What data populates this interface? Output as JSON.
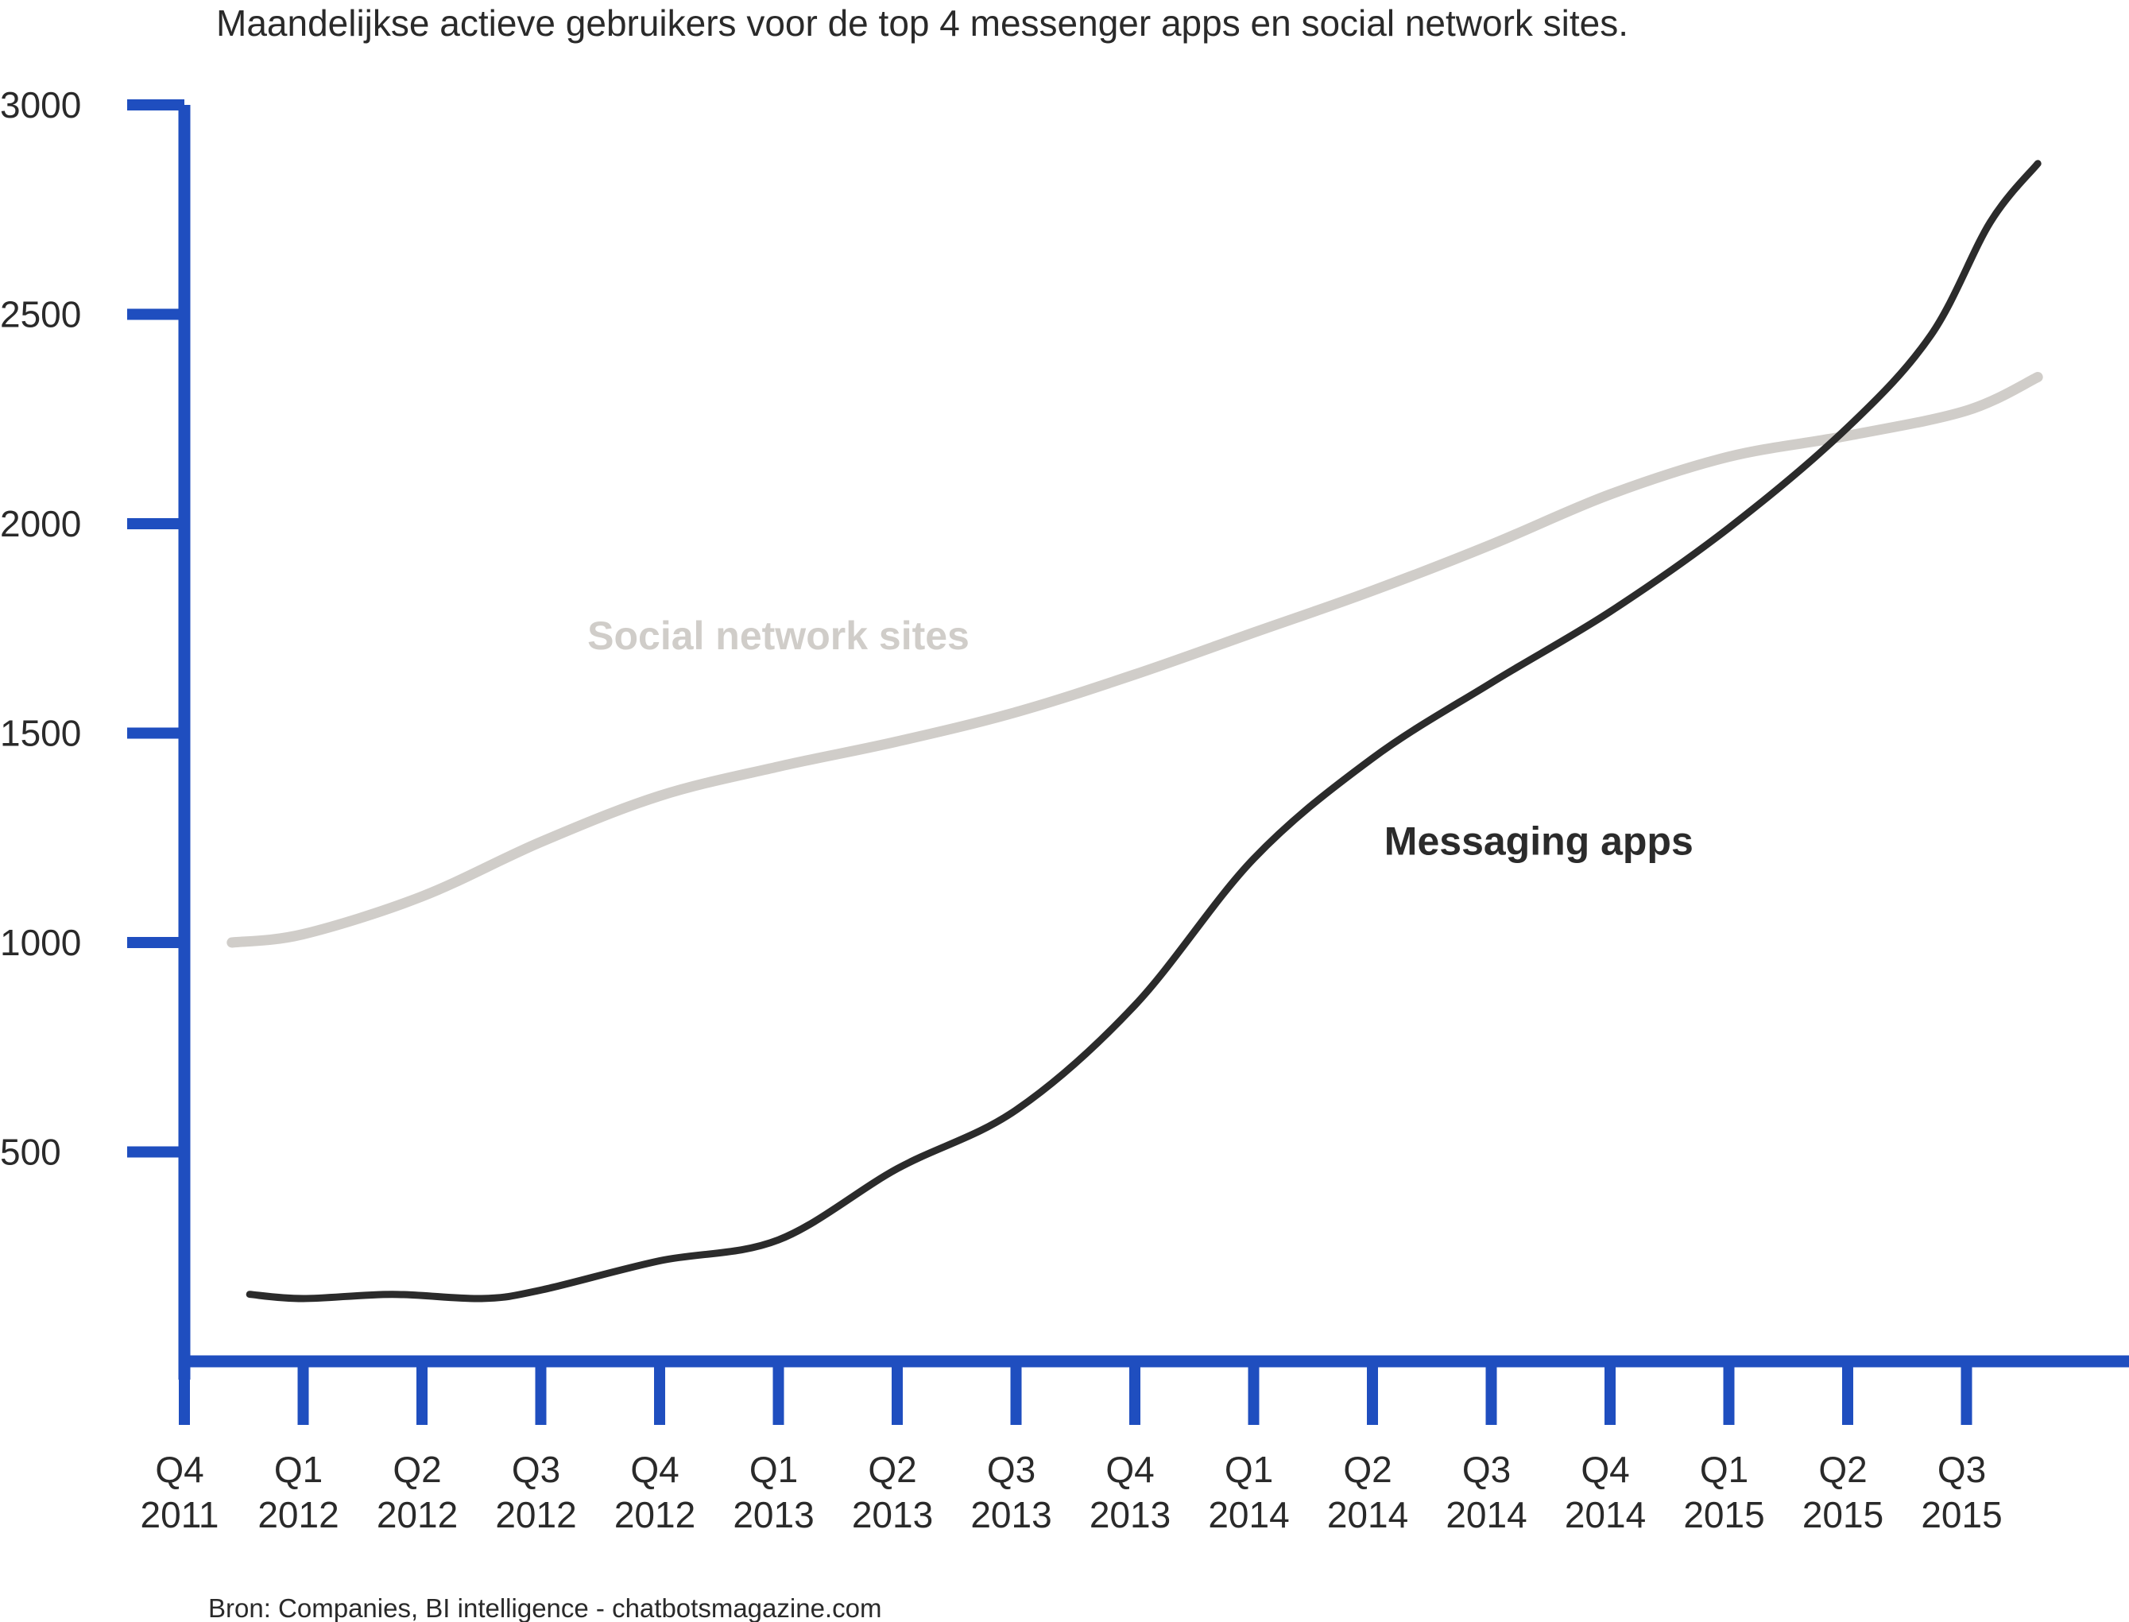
{
  "chart_data": {
    "type": "line",
    "title": "Maandelijkse actieve gebruikers voor de top 4 messenger apps en social network sites.",
    "source": "Bron: Companies, BI intelligence - chatbotsmagazine.com",
    "xlabel": "",
    "ylabel": "",
    "ylim": [
      0,
      3000
    ],
    "yticks": [
      "500",
      "1000",
      "1500",
      "2000",
      "2500",
      "3000"
    ],
    "categories": [
      [
        "Q4",
        "2011"
      ],
      [
        "Q1",
        "2012"
      ],
      [
        "Q2",
        "2012"
      ],
      [
        "Q3",
        "2012"
      ],
      [
        "Q4",
        "2012"
      ],
      [
        "Q1",
        "2013"
      ],
      [
        "Q2",
        "2013"
      ],
      [
        "Q3",
        "2013"
      ],
      [
        "Q4",
        "2013"
      ],
      [
        "Q1",
        "2014"
      ],
      [
        "Q2",
        "2014"
      ],
      [
        "Q3",
        "2014"
      ],
      [
        "Q4",
        "2014"
      ],
      [
        "Q1",
        "2015"
      ],
      [
        "Q2",
        "2015"
      ],
      [
        "Q3",
        "2015"
      ]
    ],
    "grid": false,
    "legend": "inline",
    "series": [
      {
        "name": "Social network sites",
        "color": "#d0cdc9",
        "x": [
          0.4,
          1.0,
          2.0,
          3.0,
          4.0,
          5.0,
          6.0,
          7.0,
          8.0,
          9.0,
          10.0,
          11.0,
          12.0,
          13.0,
          14.0,
          15.0,
          15.6
        ],
        "values": [
          1000,
          1020,
          1110,
          1240,
          1350,
          1420,
          1480,
          1550,
          1640,
          1740,
          1840,
          1950,
          2070,
          2160,
          2210,
          2270,
          2350
        ]
      },
      {
        "name": "Messaging apps",
        "color": "#2b2b2b",
        "x": [
          0.55,
          1.0,
          1.75,
          2.5,
          3.0,
          4.0,
          5.0,
          6.0,
          7.0,
          8.0,
          9.0,
          10.0,
          11.0,
          12.0,
          13.0,
          14.0,
          14.7,
          15.2,
          15.6
        ],
        "values": [
          160,
          150,
          160,
          150,
          170,
          240,
          290,
          460,
          600,
          850,
          1200,
          1440,
          1620,
          1790,
          1990,
          2230,
          2450,
          2720,
          2860
        ]
      }
    ],
    "annotations": [
      {
        "series": 0,
        "text": "Social network sites",
        "x": 5.0,
        "y": 1700,
        "color": "#d0cdc9"
      },
      {
        "series": 1,
        "text": "Messaging apps",
        "x": 11.4,
        "y": 1210,
        "color": "#2b2b2b"
      }
    ],
    "axis_color": "#1f4ebf"
  }
}
